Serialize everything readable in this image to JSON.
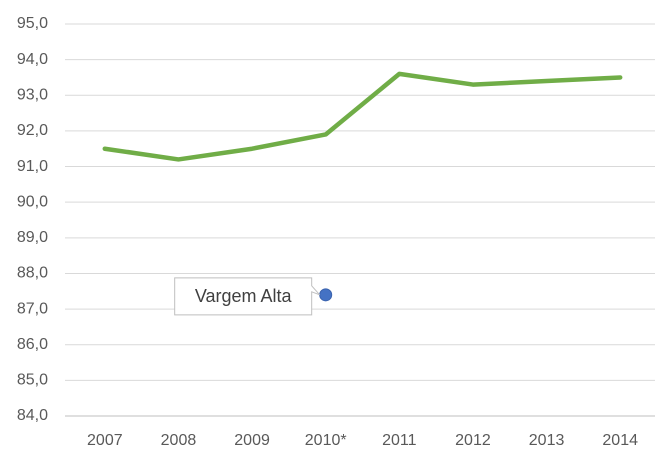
{
  "chart_data": {
    "type": "line",
    "categories": [
      "2007",
      "2008",
      "2009",
      "2010*",
      "2011",
      "2012",
      "2013",
      "2014"
    ],
    "series": [
      {
        "color": "#70ad47",
        "style": "line",
        "values": [
          91.5,
          91.2,
          91.5,
          91.9,
          93.6,
          93.3,
          93.4,
          93.5
        ]
      },
      {
        "name": "Vargem Alta",
        "color": "#4472c4",
        "style": "point",
        "values": [
          null,
          null,
          null,
          87.4,
          null,
          null,
          null,
          null
        ]
      }
    ],
    "ylim": [
      84,
      95
    ],
    "yticks": [
      {
        "value": 84,
        "label": "84,0"
      },
      {
        "value": 85,
        "label": "85,0"
      },
      {
        "value": 86,
        "label": "86,0"
      },
      {
        "value": 87,
        "label": "87,0"
      },
      {
        "value": 88,
        "label": "88,0"
      },
      {
        "value": 89,
        "label": "89,0"
      },
      {
        "value": 90,
        "label": "90,0"
      },
      {
        "value": 91,
        "label": "91,0"
      },
      {
        "value": 92,
        "label": "92,0"
      },
      {
        "value": 93,
        "label": "93,0"
      },
      {
        "value": 94,
        "label": "94,0"
      },
      {
        "value": 95,
        "label": "95,0"
      }
    ],
    "grid": true
  }
}
